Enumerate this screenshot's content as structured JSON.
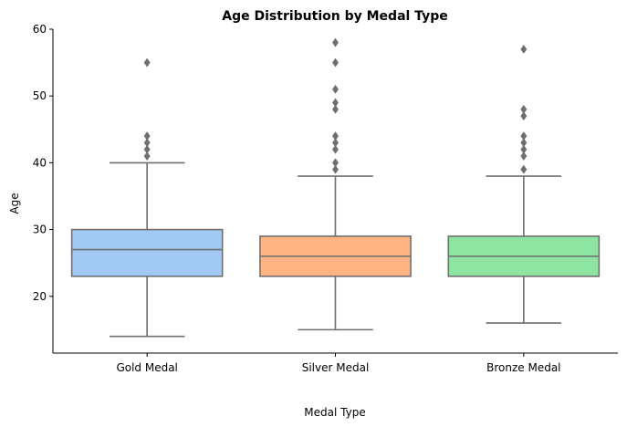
{
  "chart_data": {
    "type": "box",
    "title": "Age Distribution by Medal Type",
    "xlabel": "Medal Type",
    "ylabel": "Age",
    "ylim": [
      11.5,
      60
    ],
    "yticks": [
      20,
      30,
      40,
      50,
      60
    ],
    "grid": false,
    "legend": "none",
    "categories": [
      "Gold Medal",
      "Silver Medal",
      "Bronze Medal"
    ],
    "series": [
      {
        "category": "Gold Medal",
        "color": "#a1c9f4",
        "whisker_low": 14,
        "q1": 23,
        "median": 27,
        "q3": 30,
        "whisker_high": 40,
        "outliers": [
          41,
          42,
          43,
          44,
          55
        ]
      },
      {
        "category": "Silver Medal",
        "color": "#ffb482",
        "whisker_low": 15,
        "q1": 23,
        "median": 26,
        "q3": 29,
        "whisker_high": 38,
        "outliers": [
          39,
          40,
          42,
          43,
          44,
          48,
          49,
          51,
          55,
          58
        ]
      },
      {
        "category": "Bronze Medal",
        "color": "#8de5a1",
        "whisker_low": 16,
        "q1": 23,
        "median": 26,
        "q3": 29,
        "whisker_high": 38,
        "outliers": [
          39,
          41,
          42,
          43,
          44,
          47,
          48,
          57
        ]
      }
    ],
    "line_color": "#6f6f6f",
    "axis_color": "#000000"
  }
}
